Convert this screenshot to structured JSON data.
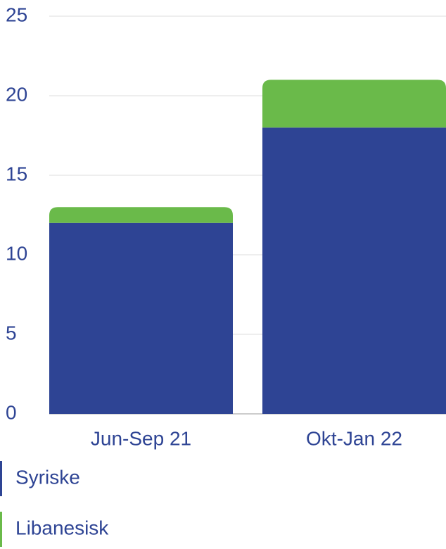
{
  "chart_data": {
    "type": "stacked_bar",
    "categories": [
      "Jun-Sep 21",
      "Okt-Jan 22"
    ],
    "series": [
      {
        "name": "Syriske",
        "color": "#2e4494",
        "values": [
          12,
          18
        ]
      },
      {
        "name": "Libanesisk",
        "color": "#6aba4a",
        "values": [
          1,
          3
        ]
      }
    ],
    "ylim": [
      0,
      25
    ],
    "yticks": [
      0,
      5,
      10,
      15,
      20,
      25
    ],
    "grid": true
  }
}
